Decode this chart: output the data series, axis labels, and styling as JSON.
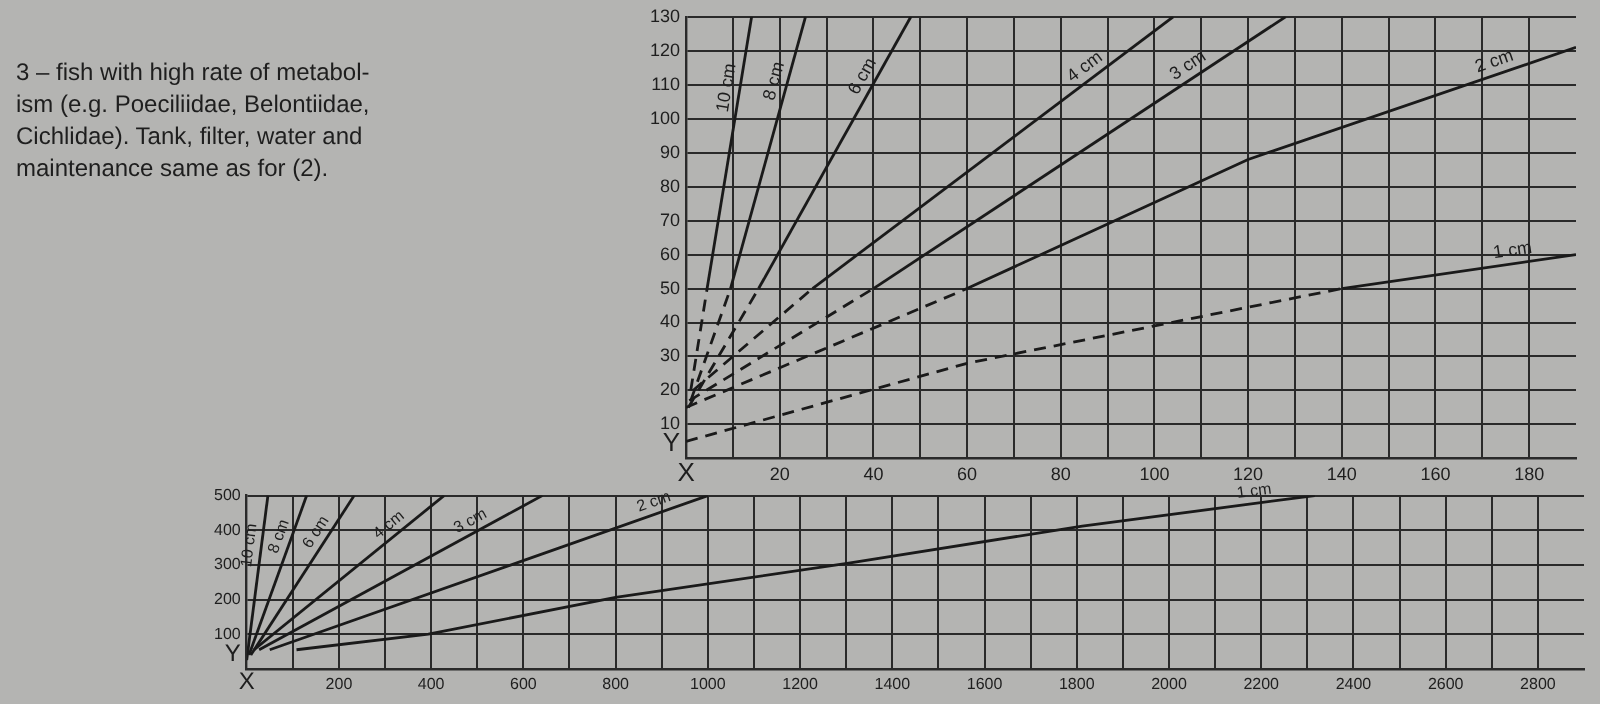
{
  "chart_data": [
    {
      "type": "line",
      "xlabel": "X",
      "ylabel": "Y",
      "annotations": [
        "3 – fish with high rate of metabol-\nism (e.g. Poeciliidae, Belontiidae,\nCichlidae). Tank, filter, water and\nmaintenance same as for (2)."
      ],
      "xlim": [
        0,
        190
      ],
      "ylim": [
        0,
        130
      ],
      "xticks": [
        {
          "value": 10,
          "label": null
        },
        20,
        {
          "value": 30,
          "label": null
        },
        40,
        {
          "value": 50,
          "label": null
        },
        60,
        {
          "value": 70,
          "label": null
        },
        80,
        {
          "value": 90,
          "label": null
        },
        100,
        {
          "value": 110,
          "label": null
        },
        120,
        {
          "value": 130,
          "label": null
        },
        140,
        {
          "value": 150,
          "label": null
        },
        160,
        {
          "value": 170,
          "label": null
        },
        180
      ],
      "yticks": [
        10,
        20,
        30,
        40,
        50,
        60,
        70,
        80,
        90,
        100,
        110,
        120,
        130
      ],
      "grid": true,
      "legend": false,
      "marker": "none",
      "series": [
        {
          "color": "#1a1a1a",
          "line_style": "dashed",
          "x": [
            1,
            4.5
          ],
          "values": [
            20,
            50
          ]
        },
        {
          "name": "10 cm",
          "color": "#1a1a1a",
          "line_style": "solid",
          "x": [
            4.5,
            14
          ],
          "values": [
            50,
            130
          ]
        },
        {
          "color": "#1a1a1a",
          "line_style": "dashed",
          "x": [
            1,
            9.5
          ],
          "values": [
            17,
            50
          ]
        },
        {
          "name": "8 cm",
          "color": "#1a1a1a",
          "line_style": "solid",
          "x": [
            9.5,
            25.5
          ],
          "values": [
            50,
            130
          ]
        },
        {
          "color": "#1a1a1a",
          "line_style": "dashed",
          "x": [
            0.5,
            15.5
          ],
          "values": [
            15,
            50
          ]
        },
        {
          "name": "6 cm",
          "color": "#1a1a1a",
          "line_style": "solid",
          "x": [
            15.5,
            48
          ],
          "values": [
            50,
            130
          ]
        },
        {
          "color": "#1a1a1a",
          "line_style": "dashed",
          "x": [
            1.5,
            27
          ],
          "values": [
            20,
            50
          ]
        },
        {
          "name": "4 cm",
          "color": "#1a1a1a",
          "line_style": "solid",
          "x": [
            27,
            104
          ],
          "values": [
            50,
            130
          ]
        },
        {
          "color": "#1a1a1a",
          "line_style": "dashed",
          "x": [
            0.7,
            40
          ],
          "values": [
            17,
            50
          ]
        },
        {
          "name": "3 cm",
          "color": "#1a1a1a",
          "line_style": "solid",
          "x": [
            40,
            128
          ],
          "values": [
            50,
            130
          ]
        },
        {
          "color": "#1a1a1a",
          "line_style": "dashed",
          "x": [
            0,
            60
          ],
          "values": [
            15,
            50
          ]
        },
        {
          "name": "2 cm",
          "color": "#1a1a1a",
          "line_style": "solid",
          "x": [
            60,
            120,
            190
          ],
          "values": [
            50,
            88,
            121
          ]
        },
        {
          "color": "#1a1a1a",
          "line_style": "dashed",
          "x": [
            0,
            60,
            100,
            140
          ],
          "values": [
            5,
            28,
            39,
            50
          ]
        },
        {
          "name": "1 cm",
          "color": "#1a1a1a",
          "line_style": "solid",
          "x": [
            140,
            190
          ],
          "values": [
            50,
            60
          ]
        }
      ]
    },
    {
      "type": "line",
      "xlabel": "X",
      "ylabel": "Y",
      "xlim": [
        0,
        2900
      ],
      "ylim": [
        0,
        500
      ],
      "xticks": [
        {
          "value": 100,
          "label": null
        },
        200,
        {
          "value": 300,
          "label": null
        },
        400,
        {
          "value": 500,
          "label": null
        },
        600,
        {
          "value": 700,
          "label": null
        },
        800,
        {
          "value": 900,
          "label": null
        },
        1000,
        {
          "value": 1100,
          "label": null
        },
        1200,
        {
          "value": 1300,
          "label": null
        },
        1400,
        {
          "value": 1500,
          "label": null
        },
        1600,
        {
          "value": 1700,
          "label": null
        },
        1800,
        {
          "value": 1900,
          "label": null
        },
        2000,
        {
          "value": 2100,
          "label": null
        },
        2200,
        {
          "value": 2300,
          "label": null
        },
        2400,
        {
          "value": 2500,
          "label": null
        },
        2600,
        {
          "value": 2700,
          "label": null
        },
        2800
      ],
      "yticks": [
        100,
        200,
        300,
        400,
        500
      ],
      "grid": true,
      "legend": false,
      "marker": "none",
      "line_style": "solid",
      "series": [
        {
          "name": "10 cm",
          "color": "#1a1a1a",
          "x": [
            0,
            46
          ],
          "values": [
            25,
            500
          ]
        },
        {
          "name": "8 cm",
          "color": "#1a1a1a",
          "x": [
            5,
            130
          ],
          "values": [
            40,
            500
          ]
        },
        {
          "name": "6 cm",
          "color": "#1a1a1a",
          "x": [
            9,
            233
          ],
          "values": [
            40,
            500
          ]
        },
        {
          "name": "4 cm",
          "color": "#1a1a1a",
          "x": [
            16,
            428
          ],
          "values": [
            55,
            500
          ]
        },
        {
          "name": "3 cm",
          "color": "#1a1a1a",
          "x": [
            27,
            641
          ],
          "values": [
            55,
            500
          ]
        },
        {
          "name": "2 cm",
          "color": "#1a1a1a",
          "x": [
            50,
            595,
            1000
          ],
          "values": [
            55,
            310,
            500
          ]
        },
        {
          "name": "1 cm",
          "color": "#1a1a1a",
          "x": [
            108,
            394,
            800,
            1309,
            1812,
            2316
          ],
          "values": [
            55,
            100,
            206,
            306,
            412,
            500
          ]
        }
      ]
    }
  ]
}
